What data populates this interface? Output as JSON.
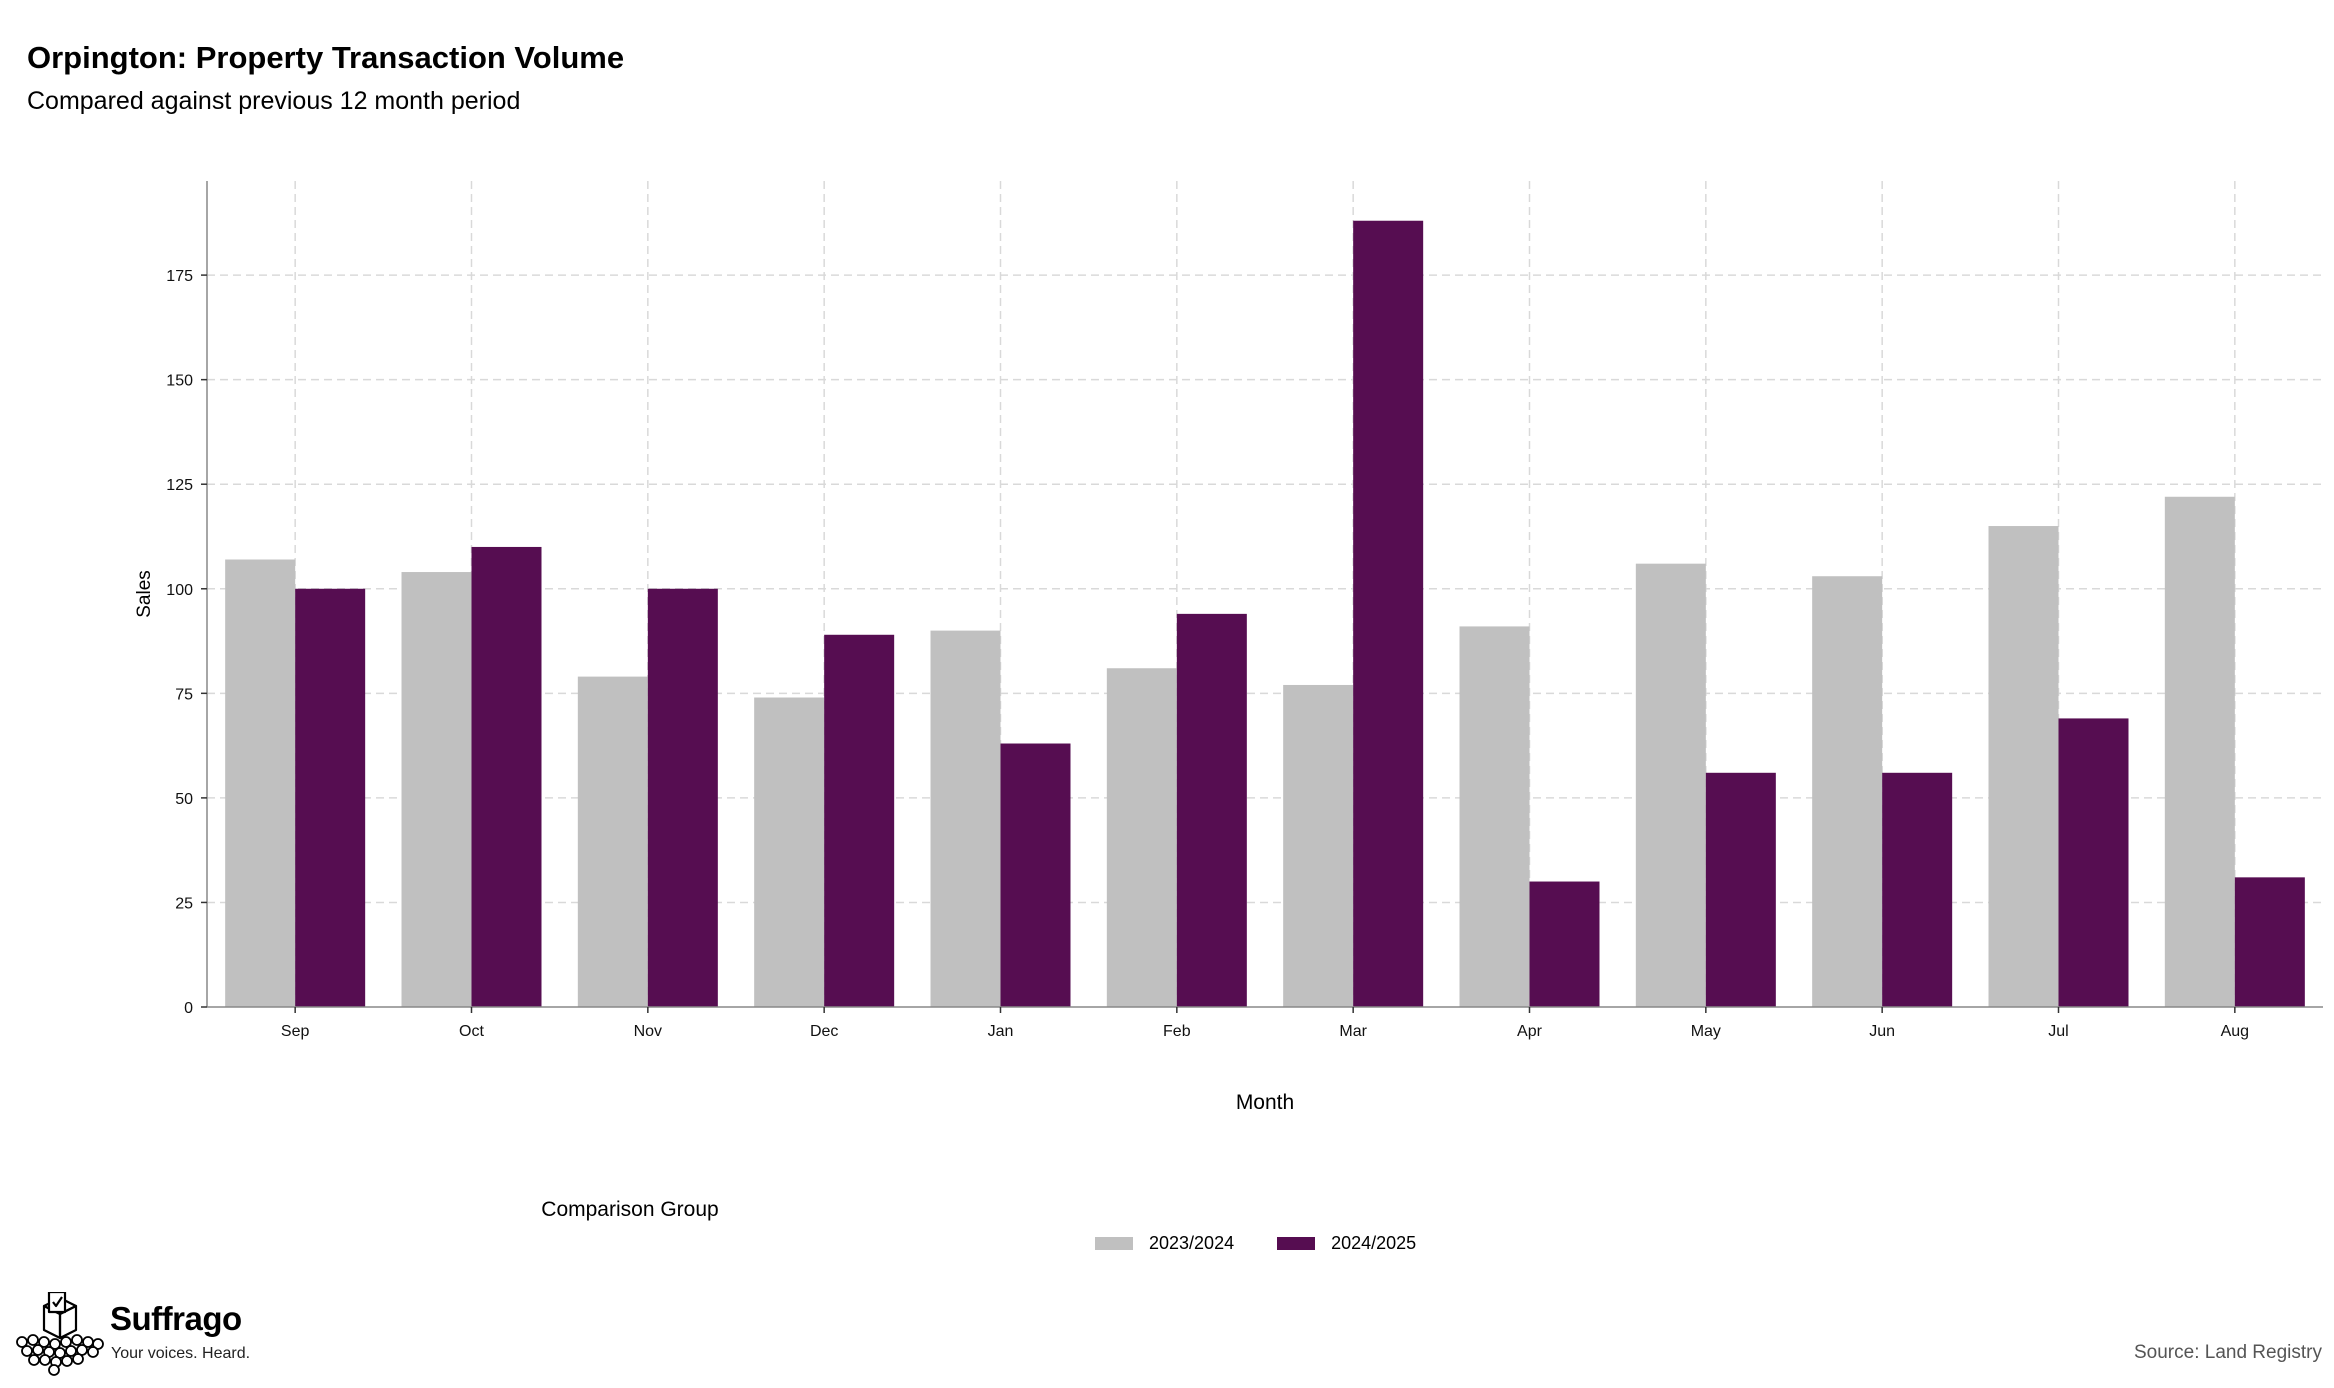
{
  "chart_data": {
    "type": "bar",
    "title": "Orpington: Property Transaction Volume",
    "subtitle": "Compared against previous 12 month period",
    "xlabel": "Month",
    "ylabel": "Sales",
    "categories": [
      "Sep",
      "Oct",
      "Nov",
      "Dec",
      "Jan",
      "Feb",
      "Mar",
      "Apr",
      "May",
      "Jun",
      "Jul",
      "Aug"
    ],
    "series": [
      {
        "name": "2023/2024",
        "color": "#c0c0c0",
        "values": [
          107,
          104,
          79,
          74,
          90,
          81,
          77,
          91,
          106,
          103,
          115,
          122
        ]
      },
      {
        "name": "2024/2025",
        "color": "#560d51",
        "values": [
          100,
          110,
          100,
          89,
          63,
          94,
          188,
          30,
          56,
          56,
          69,
          31
        ]
      }
    ],
    "yticks": [
      0,
      25,
      50,
      75,
      100,
      125,
      150,
      175
    ],
    "ylim": [
      0,
      197.5
    ],
    "grid": true,
    "legend_title": "Comparison Group",
    "legend_position": "bottom"
  },
  "branding": {
    "name": "Suffrago",
    "tagline": "Your voices. Heard."
  },
  "source": "Source: Land Registry"
}
